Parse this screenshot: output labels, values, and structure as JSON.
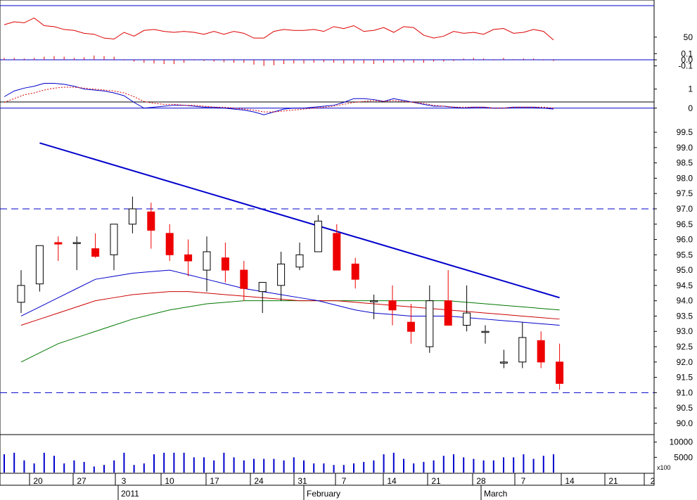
{
  "chart_data": [
    {
      "panel": "oscillator",
      "type": "line",
      "yticks": [
        "50"
      ],
      "ylim": [
        30,
        80
      ],
      "series": [
        {
          "values": [
            63,
            66,
            65,
            70,
            62,
            61,
            58,
            57,
            54,
            53,
            49,
            48,
            55,
            51,
            57,
            58,
            56,
            55,
            56,
            55,
            53,
            56,
            53,
            56,
            54,
            49,
            49,
            56,
            58,
            57,
            57,
            58,
            56,
            61,
            59,
            62,
            56,
            57,
            60,
            55,
            61,
            60,
            52,
            49,
            51,
            56,
            54,
            55,
            53,
            58,
            59,
            54,
            55,
            58,
            56,
            47
          ],
          "color": "#dd0000"
        }
      ]
    },
    {
      "panel": "histogram",
      "type": "bar",
      "yticks": [
        "0.1",
        "0.0",
        "-0.1"
      ],
      "ylim": [
        -0.15,
        0.15
      ],
      "series": [
        {
          "values": [
            0.03,
            0.03,
            0.02,
            0.03,
            0.05,
            0.06,
            0.05,
            0.03,
            0.04,
            0.07,
            0.06,
            0.05,
            -0.01,
            -0.03,
            -0.05,
            -0.06,
            -0.07,
            -0.07,
            -0.05,
            -0.01,
            -0.02,
            -0.03,
            -0.04,
            -0.05,
            -0.05,
            -0.08,
            -0.1,
            -0.09,
            -0.07,
            -0.06,
            -0.06,
            -0.05,
            -0.04,
            -0.05,
            -0.06,
            -0.06,
            -0.06,
            -0.07,
            -0.05,
            -0.05,
            -0.04,
            -0.05,
            -0.05,
            -0.03,
            -0.03,
            -0.02,
            0.02,
            0.03,
            0.02,
            -0.01,
            0.03,
            0.01,
            0.02,
            0.02,
            -0.01,
            -0.02
          ],
          "color": "#dd0000"
        }
      ]
    },
    {
      "panel": "macd",
      "type": "line",
      "yticks": [
        "1",
        "0"
      ],
      "ylim": [
        -0.6,
        1.8
      ],
      "series": [
        {
          "values": [
            0.6,
            0.9,
            1.05,
            1.15,
            1.3,
            1.3,
            1.25,
            1.15,
            1.0,
            0.95,
            0.9,
            0.8,
            0.65,
            0.3,
            0.0,
            0.05,
            0.1,
            0.15,
            0.15,
            0.1,
            0.05,
            0.05,
            0.0,
            -0.05,
            -0.1,
            -0.2,
            -0.35,
            -0.2,
            -0.05,
            0.0,
            0.0,
            0.05,
            0.1,
            0.15,
            0.3,
            0.5,
            0.5,
            0.45,
            0.35,
            0.5,
            0.4,
            0.3,
            0.2,
            0.1,
            0.1,
            0.05,
            0.0,
            0.05,
            0.05,
            0.0,
            0.0,
            0.05,
            0.05,
            0.05,
            0.0,
            -0.05
          ],
          "color": "#0000cc"
        },
        {
          "values": [
            0.3,
            0.5,
            0.7,
            0.8,
            0.95,
            1.05,
            1.1,
            1.1,
            1.05,
            1.0,
            0.95,
            0.9,
            0.8,
            0.6,
            0.35,
            0.25,
            0.2,
            0.2,
            0.15,
            0.15,
            0.1,
            0.05,
            0.05,
            0.0,
            -0.05,
            -0.1,
            -0.2,
            -0.2,
            -0.15,
            -0.1,
            -0.05,
            0.0,
            0.05,
            0.1,
            0.2,
            0.3,
            0.35,
            0.4,
            0.35,
            0.4,
            0.35,
            0.3,
            0.25,
            0.15,
            0.1,
            0.05,
            0.05,
            0.05,
            0.05,
            0.0,
            0.0,
            0.05,
            0.05,
            0.05,
            0.05,
            0.0
          ],
          "color": "#dd0000",
          "dashed": true
        }
      ]
    },
    {
      "panel": "price",
      "type": "candlestick",
      "yticks": [
        "99.5",
        "99.0",
        "98.5",
        "98.0",
        "97.5",
        "97.0",
        "96.5",
        "96.0",
        "95.5",
        "95.0",
        "94.5",
        "94.0",
        "93.5",
        "93.0",
        "92.5",
        "92.0",
        "91.5",
        "91.0",
        "90.5",
        "90.0"
      ],
      "ylim": [
        89.7,
        99.8
      ],
      "ohlc": [
        [
          93.95,
          95.0,
          93.6,
          94.5
        ],
        [
          94.55,
          95.8,
          94.3,
          95.8
        ],
        [
          95.9,
          96.1,
          95.3,
          95.85
        ],
        [
          95.9,
          96.1,
          95.0,
          95.9
        ],
        [
          95.7,
          96.2,
          95.4,
          95.45
        ],
        [
          95.5,
          96.5,
          95.0,
          96.5
        ],
        [
          96.5,
          97.4,
          96.2,
          97.0
        ],
        [
          96.9,
          97.2,
          95.7,
          96.3
        ],
        [
          96.2,
          96.5,
          95.3,
          95.5
        ],
        [
          95.5,
          96.0,
          94.8,
          95.3
        ],
        [
          95.0,
          96.1,
          94.3,
          95.6
        ],
        [
          95.4,
          95.9,
          94.6,
          95.0
        ],
        [
          95.0,
          95.3,
          94.0,
          94.4
        ],
        [
          94.3,
          94.6,
          93.6,
          94.6
        ],
        [
          94.5,
          95.6,
          94.0,
          95.2
        ],
        [
          95.1,
          95.9,
          95.0,
          95.5
        ],
        [
          95.6,
          96.8,
          95.6,
          96.6
        ],
        [
          96.2,
          96.5,
          95.0,
          95.0
        ],
        [
          95.2,
          95.4,
          94.4,
          94.7
        ],
        [
          94.0,
          94.2,
          93.4,
          94.0
        ],
        [
          94.0,
          94.5,
          93.2,
          93.7
        ],
        [
          93.3,
          93.9,
          92.6,
          93.0
        ],
        [
          92.5,
          94.5,
          92.3,
          94.0
        ],
        [
          94.0,
          95.0,
          93.2,
          93.2
        ],
        [
          93.2,
          94.5,
          93.0,
          93.6
        ],
        [
          93.0,
          93.2,
          92.6,
          93.0
        ],
        [
          92.0,
          92.4,
          91.8,
          92.0
        ],
        [
          92.0,
          93.3,
          91.8,
          92.8
        ],
        [
          92.7,
          93.0,
          91.8,
          92.0
        ],
        [
          92.0,
          92.6,
          91.1,
          91.3
        ]
      ],
      "ma_fast": [
        93.5,
        93.8,
        94.1,
        94.4,
        94.7,
        94.8,
        94.9,
        94.95,
        95.0,
        94.85,
        94.7,
        94.55,
        94.4,
        94.3,
        94.2,
        94.1,
        94.0,
        93.85,
        93.7,
        93.6,
        93.55,
        93.5,
        93.5,
        93.5,
        93.45,
        93.4,
        93.35,
        93.3,
        93.25,
        93.2
      ],
      "ma_mid": [
        93.2,
        93.4,
        93.6,
        93.8,
        94.0,
        94.1,
        94.2,
        94.25,
        94.3,
        94.3,
        94.25,
        94.2,
        94.15,
        94.1,
        94.05,
        94.0,
        94.0,
        94.0,
        93.95,
        93.9,
        93.85,
        93.8,
        93.75,
        93.7,
        93.65,
        93.6,
        93.55,
        93.5,
        93.45,
        93.4
      ],
      "ma_slow": [
        92.0,
        92.3,
        92.6,
        92.8,
        93.0,
        93.2,
        93.4,
        93.55,
        93.7,
        93.8,
        93.9,
        93.95,
        94.0,
        94.0,
        94.0,
        94.0,
        94.0,
        94.0,
        94.0,
        94.0,
        94.0,
        94.0,
        94.0,
        94.0,
        93.95,
        93.9,
        93.85,
        93.8,
        93.75,
        93.7
      ],
      "hlines": [
        97.0,
        91.0
      ],
      "trendline": [
        [
          1,
          99.15
        ],
        [
          29,
          94.1
        ]
      ]
    },
    {
      "panel": "volume",
      "type": "bar",
      "yticks": [
        "10000",
        "5000"
      ],
      "ylim": [
        0,
        12000
      ],
      "scale_label": "x100",
      "values": [
        6000,
        6500,
        4000,
        3000,
        6500,
        5500,
        3000,
        4000,
        3500,
        2000,
        2500,
        4000,
        6500,
        2500,
        3000,
        6000,
        6500,
        6500,
        6500,
        5000,
        5000,
        4000,
        6500,
        5000,
        4000,
        4500,
        4500,
        4500,
        4000,
        5000,
        4000,
        3000,
        3000,
        2500,
        2500,
        3000,
        3500,
        4000,
        6000,
        6500,
        4500,
        3000,
        3500,
        4000,
        5500,
        6000,
        5000,
        4500,
        4000,
        4000,
        5000,
        5000,
        6000,
        4500,
        5500,
        6000
      ]
    }
  ],
  "x_axis": {
    "day_labels": [
      "20",
      "27",
      "3",
      "10",
      "17",
      "24",
      "31",
      "7",
      "14",
      "21",
      "28",
      "7",
      "14",
      "21",
      "2"
    ],
    "month_labels": [
      "2011",
      "February",
      "March"
    ]
  }
}
